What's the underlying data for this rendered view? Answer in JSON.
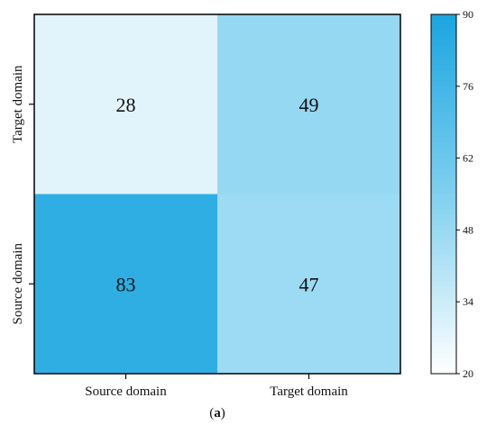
{
  "chart_data": {
    "type": "heatmap",
    "x_categories": [
      "Source domain",
      "Target domain"
    ],
    "y_categories": [
      "Target domain",
      "Source domain"
    ],
    "values": [
      [
        28,
        49
      ],
      [
        83,
        47
      ]
    ],
    "colorbar": {
      "min": 20,
      "max": 90,
      "ticks": [
        20,
        34,
        48,
        62,
        76,
        90
      ],
      "colors": [
        "#ffffff",
        "#7fd0ef",
        "#1aa5e0"
      ]
    },
    "caption_prefix": "(",
    "caption_letter": "a",
    "caption_suffix": ")"
  }
}
